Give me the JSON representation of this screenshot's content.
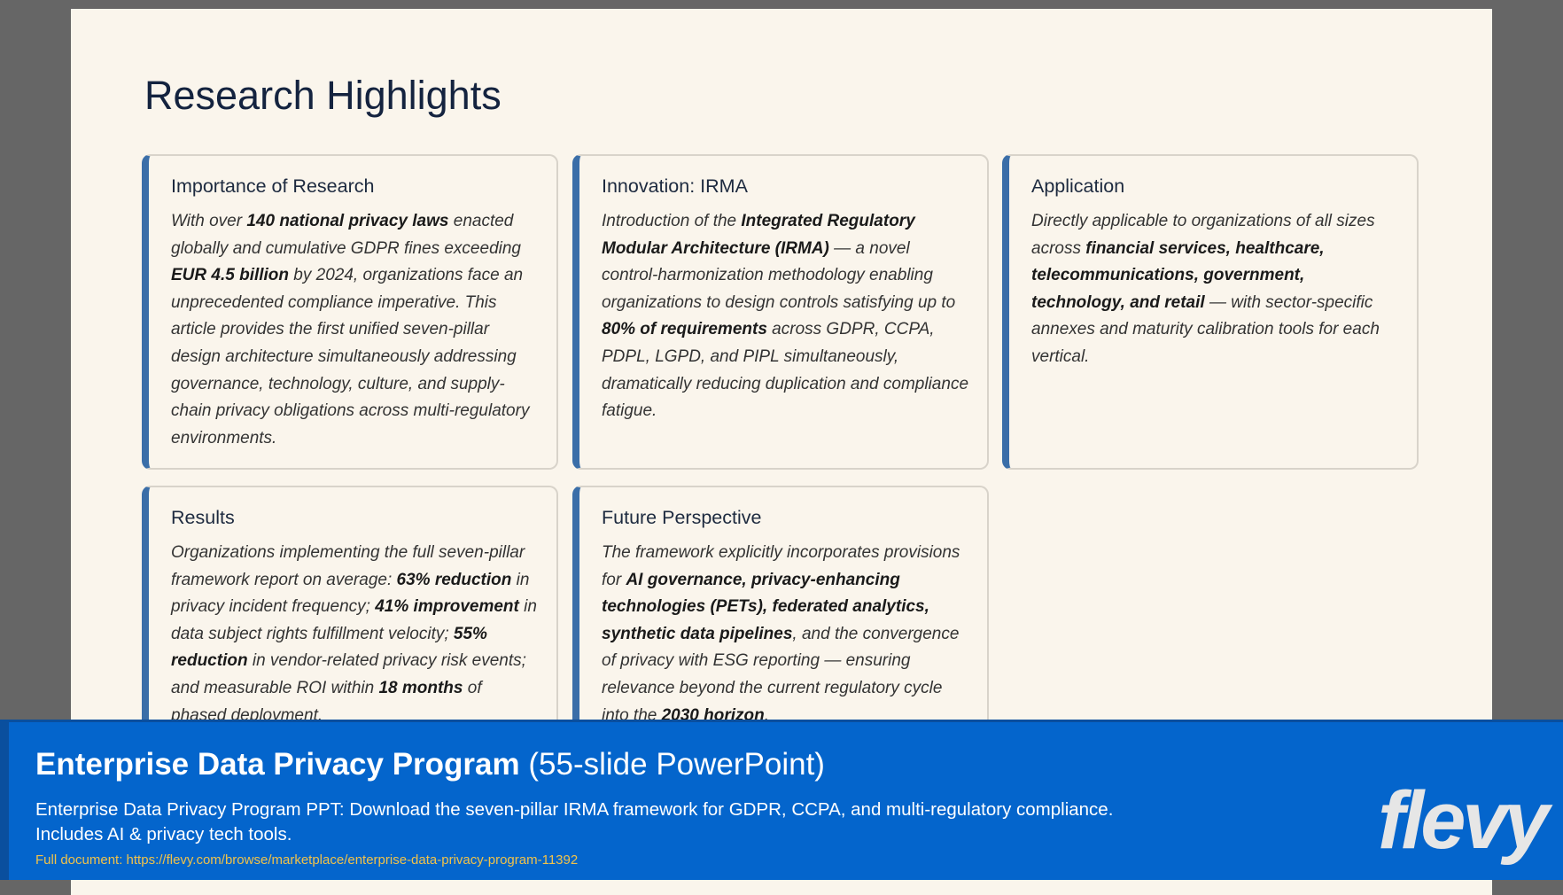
{
  "header": {
    "title": "Research Highlights"
  },
  "cards": [
    {
      "title": "Importance of Research",
      "body": [
        {
          "text": "With over ",
          "bold": false
        },
        {
          "text": "140 national privacy laws",
          "bold": true
        },
        {
          "text": " enacted globally and cumulative GDPR fines exceeding ",
          "bold": false
        },
        {
          "text": "EUR 4.5 billion",
          "bold": true
        },
        {
          "text": " by 2024, organizations face an unprecedented compliance imperative. This article provides the first unified seven-pillar design architecture simultaneously addressing governance, technology, culture, and supply-chain privacy obligations across multi-regulatory environments.",
          "bold": false
        }
      ]
    },
    {
      "title": "Innovation: IRMA",
      "body": [
        {
          "text": "Introduction of the ",
          "bold": false
        },
        {
          "text": "Integrated Regulatory Modular Architecture (IRMA)",
          "bold": true
        },
        {
          "text": " — a novel control-harmonization methodology enabling organizations to design controls satisfying up to ",
          "bold": false
        },
        {
          "text": "80% of requirements",
          "bold": true
        },
        {
          "text": " across GDPR, CCPA, PDPL, LGPD, and PIPL simultaneously, dramatically reducing duplication and compliance fatigue.",
          "bold": false
        }
      ]
    },
    {
      "title": "Application",
      "body": [
        {
          "text": "Directly applicable to organizations of all sizes across ",
          "bold": false
        },
        {
          "text": "financial services, healthcare, telecommunications, government, technology, and retail",
          "bold": true
        },
        {
          "text": " — with sector-specific annexes and maturity calibration tools for each vertical.",
          "bold": false
        }
      ]
    },
    {
      "title": "Results",
      "body": [
        {
          "text": "Organizations implementing the full seven-pillar framework report on average: ",
          "bold": false
        },
        {
          "text": "63% reduction",
          "bold": true
        },
        {
          "text": " in privacy incident frequency; ",
          "bold": false
        },
        {
          "text": "41% improvement",
          "bold": true
        },
        {
          "text": " in data subject rights fulfillment velocity; ",
          "bold": false
        },
        {
          "text": "55% reduction",
          "bold": true
        },
        {
          "text": " in vendor-related privacy risk events; and measurable ROI within ",
          "bold": false
        },
        {
          "text": "18 months",
          "bold": true
        },
        {
          "text": " of phased deployment.",
          "bold": false
        }
      ]
    },
    {
      "title": "Future Perspective",
      "body": [
        {
          "text": "The framework explicitly incorporates provisions for ",
          "bold": false
        },
        {
          "text": "AI governance, privacy-enhancing technologies (PETs), federated analytics, synthetic data pipelines",
          "bold": true
        },
        {
          "text": ", and the convergence of privacy with ESG reporting — ensuring relevance beyond the current regulatory cycle into the ",
          "bold": false
        },
        {
          "text": "2030 horizon",
          "bold": true
        },
        {
          "text": ".",
          "bold": false
        }
      ]
    }
  ],
  "banner": {
    "title": "Enterprise Data Privacy Program",
    "subtitle": "(55-slide PowerPoint)",
    "description": "Enterprise Data Privacy Program PPT: Download the seven-pillar IRMA framework for GDPR, CCPA, and multi-regulatory compliance. Includes AI & privacy tech tools.",
    "url": "Full document: https://flevy.com/browse/marketplace/enterprise-data-privacy-program-11392",
    "logo": "flevy"
  }
}
